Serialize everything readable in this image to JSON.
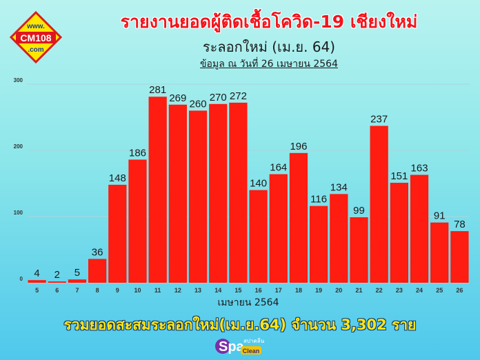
{
  "header": {
    "title": "รายงานยอดผู้ติดเชื้อโควิด-19 เชียงใหม่",
    "subtitle": "ระลอกใหม่ (เม.ย. 64)",
    "date_line": "ข้อมูล ณ วันที่ 26 เมษายน 2564"
  },
  "logo": {
    "top_text": "www.",
    "main_text": "CM108",
    "bottom_text": ".com"
  },
  "footer": {
    "total_text": "รวมยอดสะสมระลอกใหม่(เม.ย.64) จำนวน 3,302 ราย",
    "brand_logo": {
      "main": "Spa",
      "small_thai": "สปาคลีน",
      "small_en": "Clean"
    }
  },
  "colors": {
    "bar": "#ff1c10",
    "title": "#f3131b",
    "total": "#ffe51a",
    "logo_bg": "#ffe600",
    "logo_border": "#d81e1e"
  },
  "chart_data": {
    "type": "bar",
    "title": "",
    "xlabel": "เมษายน 2564",
    "ylabel": "",
    "ylim": [
      0,
      300
    ],
    "yticks": [
      0,
      100,
      200,
      300
    ],
    "grid": true,
    "categories": [
      "5",
      "6",
      "7",
      "8",
      "9",
      "10",
      "11",
      "12",
      "13",
      "14",
      "15",
      "16",
      "17",
      "18",
      "19",
      "20",
      "21",
      "22",
      "23",
      "24",
      "25",
      "26"
    ],
    "values": [
      4,
      2,
      5,
      36,
      148,
      186,
      281,
      269,
      260,
      270,
      272,
      140,
      164,
      196,
      116,
      134,
      99,
      237,
      151,
      163,
      91,
      78
    ]
  }
}
